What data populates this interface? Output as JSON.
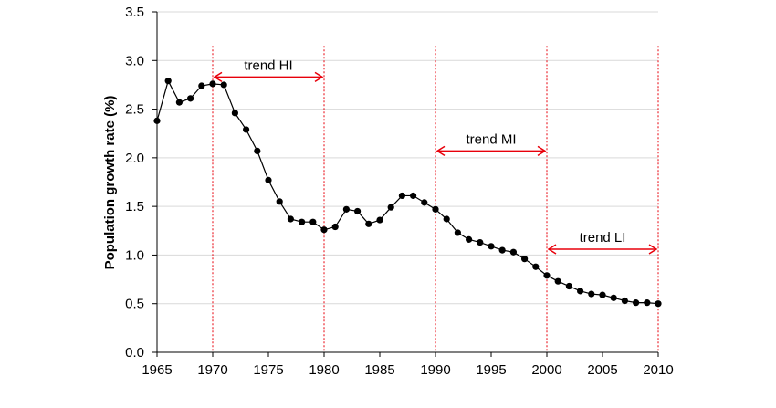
{
  "chart_data": {
    "type": "line",
    "title": "",
    "xlabel": "",
    "ylabel": "Population growth rate (%)",
    "xlim": [
      1965,
      2010
    ],
    "ylim": [
      0,
      3.5
    ],
    "x_ticks": [
      "1965",
      "1970",
      "1975",
      "1980",
      "1985",
      "1990",
      "1995",
      "2000",
      "2005",
      "2010"
    ],
    "y_ticks": [
      "0.0",
      "0.5",
      "1.0",
      "1.5",
      "2.0",
      "2.5",
      "3.0",
      "3.5"
    ],
    "grid": "horizontal",
    "colors": {
      "series": "#000000",
      "annotation": "#e8000b",
      "grid": "#d9d9d9"
    },
    "series": [
      {
        "x": [
          1965,
          1966,
          1967,
          1968,
          1969,
          1970,
          1971,
          1972,
          1973,
          1974,
          1975,
          1976,
          1977,
          1978,
          1979,
          1980,
          1981,
          1982,
          1983,
          1984,
          1985,
          1986,
          1987,
          1988,
          1989,
          1990,
          1991,
          1992,
          1993,
          1994,
          1995,
          1996,
          1997,
          1998,
          1999,
          2000,
          2001,
          2002,
          2003,
          2004,
          2005,
          2006,
          2007,
          2008,
          2009,
          2010
        ],
        "values": [
          2.38,
          2.79,
          2.57,
          2.61,
          2.74,
          2.76,
          2.75,
          2.46,
          2.29,
          2.07,
          1.77,
          1.55,
          1.37,
          1.34,
          1.34,
          1.26,
          1.29,
          1.47,
          1.45,
          1.32,
          1.36,
          1.49,
          1.61,
          1.61,
          1.54,
          1.47,
          1.37,
          1.23,
          1.16,
          1.13,
          1.09,
          1.05,
          1.03,
          0.96,
          0.88,
          0.79,
          0.73,
          0.68,
          0.63,
          0.6,
          0.59,
          0.56,
          0.53,
          0.51,
          0.51,
          0.5
        ]
      }
    ],
    "vertical_markers": [
      1970,
      1980,
      1990,
      2000,
      2010
    ],
    "annotations": [
      {
        "label": "trend HI",
        "from": 1970,
        "to": 1980,
        "y": 2.83
      },
      {
        "label": "trend MI",
        "from": 1990,
        "to": 2000,
        "y": 2.07
      },
      {
        "label": "trend LI",
        "from": 2000,
        "to": 2010,
        "y": 1.06
      }
    ]
  }
}
